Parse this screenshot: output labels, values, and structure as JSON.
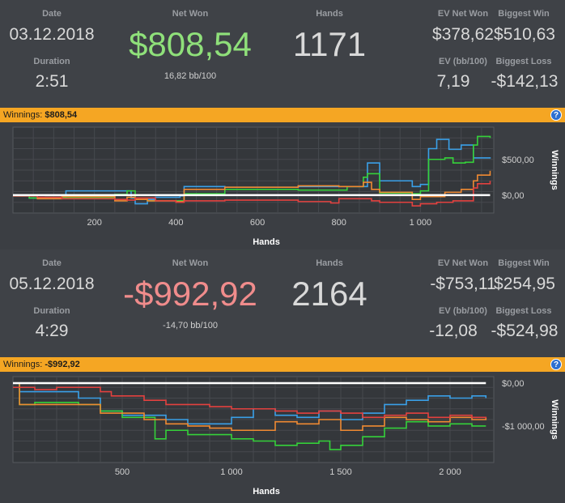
{
  "sessions": [
    {
      "date_label": "Date",
      "date": "03.12.2018",
      "duration_label": "Duration",
      "duration": "2:51",
      "net_won_label": "Net Won",
      "net_won": "$808,54",
      "net_won_color": "#8fe07a",
      "bb_per_100": "16,82 bb/100",
      "hands_label": "Hands",
      "hands": "1171",
      "ev_net_won_label": "EV Net Won",
      "ev_net_won": "$378,62",
      "ev_bb_label": "EV (bb/100)",
      "ev_bb": "7,19",
      "biggest_win_label": "Biggest Win",
      "biggest_win": "$510,63",
      "biggest_loss_label": "Biggest Loss",
      "biggest_loss": "-$142,13",
      "winnings_bar_label": "Winnings:",
      "winnings_bar_value": "$808,54",
      "help_icon": "?",
      "chart_data": {
        "type": "line",
        "xlabel": "Hands",
        "ylabel": "Winnings",
        "xlim": [
          0,
          1180
        ],
        "ylim": [
          -250,
          950
        ],
        "x_ticks": [
          200,
          400,
          600,
          800,
          1000
        ],
        "x_tick_labels": [
          "200",
          "400",
          "600",
          "800",
          "1 000"
        ],
        "y_ticks": [
          0,
          500
        ],
        "y_tick_labels": [
          "$0,00",
          "$500,00"
        ],
        "grid": true,
        "series": [
          {
            "color": "#3aa0e8",
            "x": [
              0,
              40,
              80,
              130,
              250,
              290,
              300,
              330,
              350,
              410,
              420,
              520,
              700,
              860,
              870,
              900,
              980,
              1000,
              1020,
              1040,
              1070,
              1100,
              1130,
              1171
            ],
            "y": [
              -10,
              -40,
              -30,
              60,
              60,
              -40,
              -120,
              -60,
              -30,
              -10,
              120,
              110,
              120,
              120,
              450,
              200,
              120,
              150,
              650,
              780,
              640,
              700,
              520,
              530
            ]
          },
          {
            "color": "#35d13a",
            "x": [
              0,
              40,
              80,
              130,
              250,
              280,
              300,
              330,
              400,
              420,
              520,
              700,
              820,
              860,
              870,
              900,
              980,
              1000,
              1020,
              1060,
              1080,
              1110,
              1130,
              1140,
              1171
            ],
            "y": [
              -10,
              -40,
              -30,
              -40,
              10,
              60,
              -60,
              -80,
              -80,
              20,
              80,
              70,
              120,
              250,
              300,
              30,
              20,
              60,
              500,
              520,
              450,
              460,
              700,
              820,
              800
            ]
          },
          {
            "color": "#f08a32",
            "x": [
              0,
              60,
              120,
              250,
              280,
              300,
              330,
              400,
              420,
              520,
              700,
              800,
              860,
              880,
              900,
              980,
              1000,
              1060,
              1100,
              1130,
              1140,
              1171
            ],
            "y": [
              -10,
              -50,
              -20,
              -80,
              -30,
              -60,
              -80,
              -90,
              80,
              110,
              130,
              120,
              180,
              80,
              40,
              -60,
              -20,
              40,
              80,
              200,
              280,
              340
            ]
          },
          {
            "color": "#e3413f",
            "x": [
              0,
              60,
              120,
              250,
              280,
              300,
              350,
              400,
              420,
              520,
              700,
              780,
              800,
              880,
              900,
              980,
              1000,
              1040,
              1080,
              1130,
              1140,
              1171
            ],
            "y": [
              -10,
              -30,
              -50,
              -60,
              -70,
              -40,
              -80,
              -100,
              -80,
              -70,
              -90,
              -110,
              -50,
              -80,
              -100,
              -150,
              -120,
              -100,
              -80,
              100,
              160,
              200
            ]
          },
          {
            "color": "#ffffff",
            "x": [
              0,
              1171
            ],
            "y": [
              0,
              0
            ]
          }
        ]
      }
    },
    {
      "date_label": "Date",
      "date": "05.12.2018",
      "duration_label": "Duration",
      "duration": "4:29",
      "net_won_label": "Net Won",
      "net_won": "-$992,92",
      "net_won_color": "#f08c8c",
      "bb_per_100": "-14,70 bb/100",
      "hands_label": "Hands",
      "hands": "2164",
      "ev_net_won_label": "EV Net Won",
      "ev_net_won": "-$753,11",
      "ev_bb_label": "EV (bb/100)",
      "ev_bb": "-12,08",
      "biggest_win_label": "Biggest Win",
      "biggest_win": "$254,95",
      "biggest_loss_label": "Biggest Loss",
      "biggest_loss": "-$524,98",
      "winnings_bar_label": "Winnings:",
      "winnings_bar_value": "-$992,92",
      "help_icon": "?",
      "chart_data": {
        "type": "line",
        "xlabel": "Hands",
        "ylabel": "Winnings",
        "xlim": [
          0,
          2200
        ],
        "ylim": [
          -1850,
          150
        ],
        "x_ticks": [
          500,
          1000,
          1500,
          2000
        ],
        "x_tick_labels": [
          "500",
          "1 000",
          "1 500",
          "2 000"
        ],
        "y_ticks": [
          0,
          -1000
        ],
        "y_tick_labels": [
          "$0,00",
          "-$1 000,00"
        ],
        "grid": true,
        "series": [
          {
            "color": "#3aa0e8",
            "x": [
              0,
              30,
              300,
              400,
              500,
              700,
              800,
              1000,
              1100,
              1200,
              1300,
              1400,
              1500,
              1600,
              1700,
              1800,
              1900,
              2000,
              2100,
              2164
            ],
            "y": [
              0,
              -200,
              -350,
              -650,
              -750,
              -850,
              -950,
              -800,
              -600,
              -750,
              -800,
              -650,
              -850,
              -700,
              -500,
              -400,
              -300,
              -350,
              -300,
              -350
            ]
          },
          {
            "color": "#35d13a",
            "x": [
              0,
              30,
              100,
              300,
              400,
              500,
              650,
              700,
              800,
              1000,
              1100,
              1200,
              1300,
              1400,
              1450,
              1500,
              1600,
              1700,
              1800,
              1900,
              2000,
              2100,
              2164
            ],
            "y": [
              0,
              -500,
              -450,
              -500,
              -650,
              -800,
              -1300,
              -1100,
              -1200,
              -1300,
              -1350,
              -1450,
              -1400,
              -1350,
              -1550,
              -1450,
              -1250,
              -1050,
              -900,
              -1000,
              -950,
              -1000,
              -1000
            ]
          },
          {
            "color": "#f08a32",
            "x": [
              0,
              30,
              200,
              400,
              600,
              700,
              800,
              900,
              1000,
              1200,
              1300,
              1400,
              1500,
              1600,
              1700,
              1800,
              1900,
              2000,
              2100,
              2164
            ],
            "y": [
              0,
              -500,
              -500,
              -700,
              -850,
              -950,
              -1000,
              -1050,
              -1100,
              -900,
              -950,
              -850,
              -1100,
              -1000,
              -800,
              -850,
              -900,
              -800,
              -850,
              -800
            ]
          },
          {
            "color": "#e3413f",
            "x": [
              0,
              100,
              200,
              400,
              450,
              600,
              700,
              900,
              1000,
              1200,
              1300,
              1400,
              1500,
              1600,
              1700,
              1800,
              1900,
              2000,
              2100,
              2164
            ],
            "y": [
              -100,
              -150,
              -100,
              -200,
              -300,
              -400,
              -500,
              -550,
              -600,
              -650,
              -700,
              -650,
              -700,
              -800,
              -750,
              -700,
              -800,
              -750,
              -800,
              -820
            ]
          },
          {
            "color": "#ffffff",
            "x": [
              0,
              2164
            ],
            "y": [
              0,
              0
            ]
          }
        ]
      }
    }
  ]
}
